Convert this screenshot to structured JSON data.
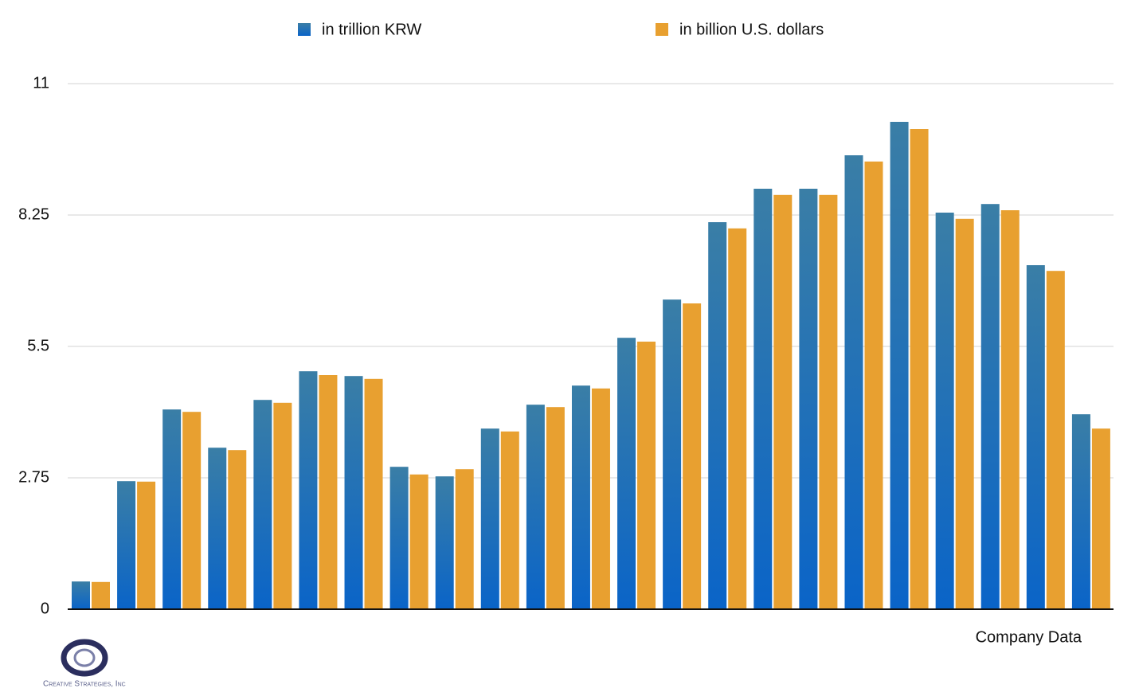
{
  "chart_data": {
    "type": "bar",
    "categories": [
      null,
      null,
      null,
      null,
      null,
      null,
      null,
      null,
      null,
      null,
      null,
      null,
      null,
      null,
      null,
      null,
      null,
      null,
      null,
      null,
      null,
      null,
      null
    ],
    "series": [
      {
        "name": "in trillion KRW",
        "color": "#1565c0",
        "values": [
          0.58,
          2.68,
          4.18,
          3.38,
          4.38,
          4.98,
          4.88,
          2.98,
          2.78,
          3.78,
          4.28,
          4.68,
          5.68,
          6.48,
          8.1,
          8.8,
          8.8,
          9.5,
          10.2,
          8.3,
          8.48,
          7.2,
          4.08
        ]
      },
      {
        "name": "in billion U.S. dollars",
        "color": "#e8a030",
        "values": [
          0.57,
          2.67,
          4.13,
          3.33,
          4.32,
          4.9,
          4.82,
          2.82,
          2.93,
          3.72,
          4.23,
          4.62,
          5.6,
          6.4,
          7.97,
          8.67,
          8.67,
          9.37,
          10.05,
          8.17,
          8.35,
          7.08,
          3.78
        ]
      }
    ],
    "ylim": [
      0,
      11
    ],
    "yticks": [
      0,
      2.75,
      5.5,
      8.25,
      11
    ],
    "grid": true,
    "legend": "top",
    "annotation": "Company Data",
    "logo_text": "Creative Strategies, Inc"
  }
}
